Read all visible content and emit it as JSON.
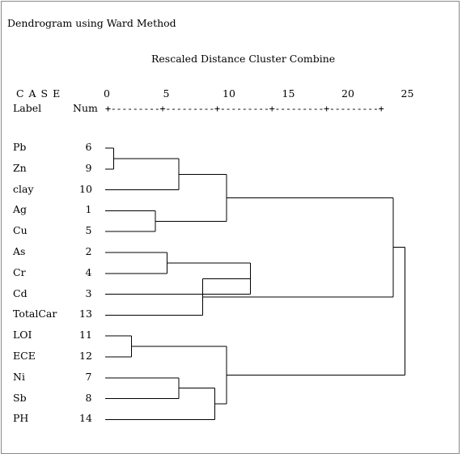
{
  "title": "Dendrogram using Ward Method",
  "subtitle": "Rescaled Distance Cluster Combine",
  "header": {
    "case_label": "C A S E",
    "label_col": "Label",
    "num_col": "Num",
    "ruler": "+---------+---------+---------+---------+---------+"
  },
  "scale_ticks": [
    "0",
    "5",
    "10",
    "15",
    "20",
    "25"
  ],
  "cases": [
    {
      "label": "Pb",
      "num": "6"
    },
    {
      "label": "Zn",
      "num": "9"
    },
    {
      "label": "clay",
      "num": "10"
    },
    {
      "label": "Ag",
      "num": "1"
    },
    {
      "label": "Cu",
      "num": "5"
    },
    {
      "label": "As",
      "num": "2"
    },
    {
      "label": "Cr",
      "num": "4"
    },
    {
      "label": "Cd",
      "num": "3"
    },
    {
      "label": "TotalCar",
      "num": "13"
    },
    {
      "label": "LOI",
      "num": "11"
    },
    {
      "label": "ECE",
      "num": "12"
    },
    {
      "label": "Ni",
      "num": "7"
    },
    {
      "label": "Sb",
      "num": "8"
    },
    {
      "label": "PH",
      "num": "14"
    }
  ],
  "merges": [
    {
      "a": "L0",
      "b": "L1",
      "d": 0.5
    },
    {
      "a": "M0",
      "b": "L2",
      "d": 6
    },
    {
      "a": "L3",
      "b": "L4",
      "d": 4
    },
    {
      "a": "M1",
      "b": "M2",
      "d": 10
    },
    {
      "a": "L5",
      "b": "L6",
      "d": 5
    },
    {
      "a": "M4",
      "b": "L7",
      "d": 12
    },
    {
      "a": "M5",
      "b": "L8",
      "d": 8
    },
    {
      "a": "M3",
      "b": "M6",
      "d": 24
    },
    {
      "a": "L9",
      "b": "L10",
      "d": 2
    },
    {
      "a": "L11",
      "b": "L12",
      "d": 6
    },
    {
      "a": "M9",
      "b": "L13",
      "d": 9
    },
    {
      "a": "M8",
      "b": "M10",
      "d": 10
    },
    {
      "a": "M7",
      "b": "M11",
      "d": 25
    }
  ]
}
